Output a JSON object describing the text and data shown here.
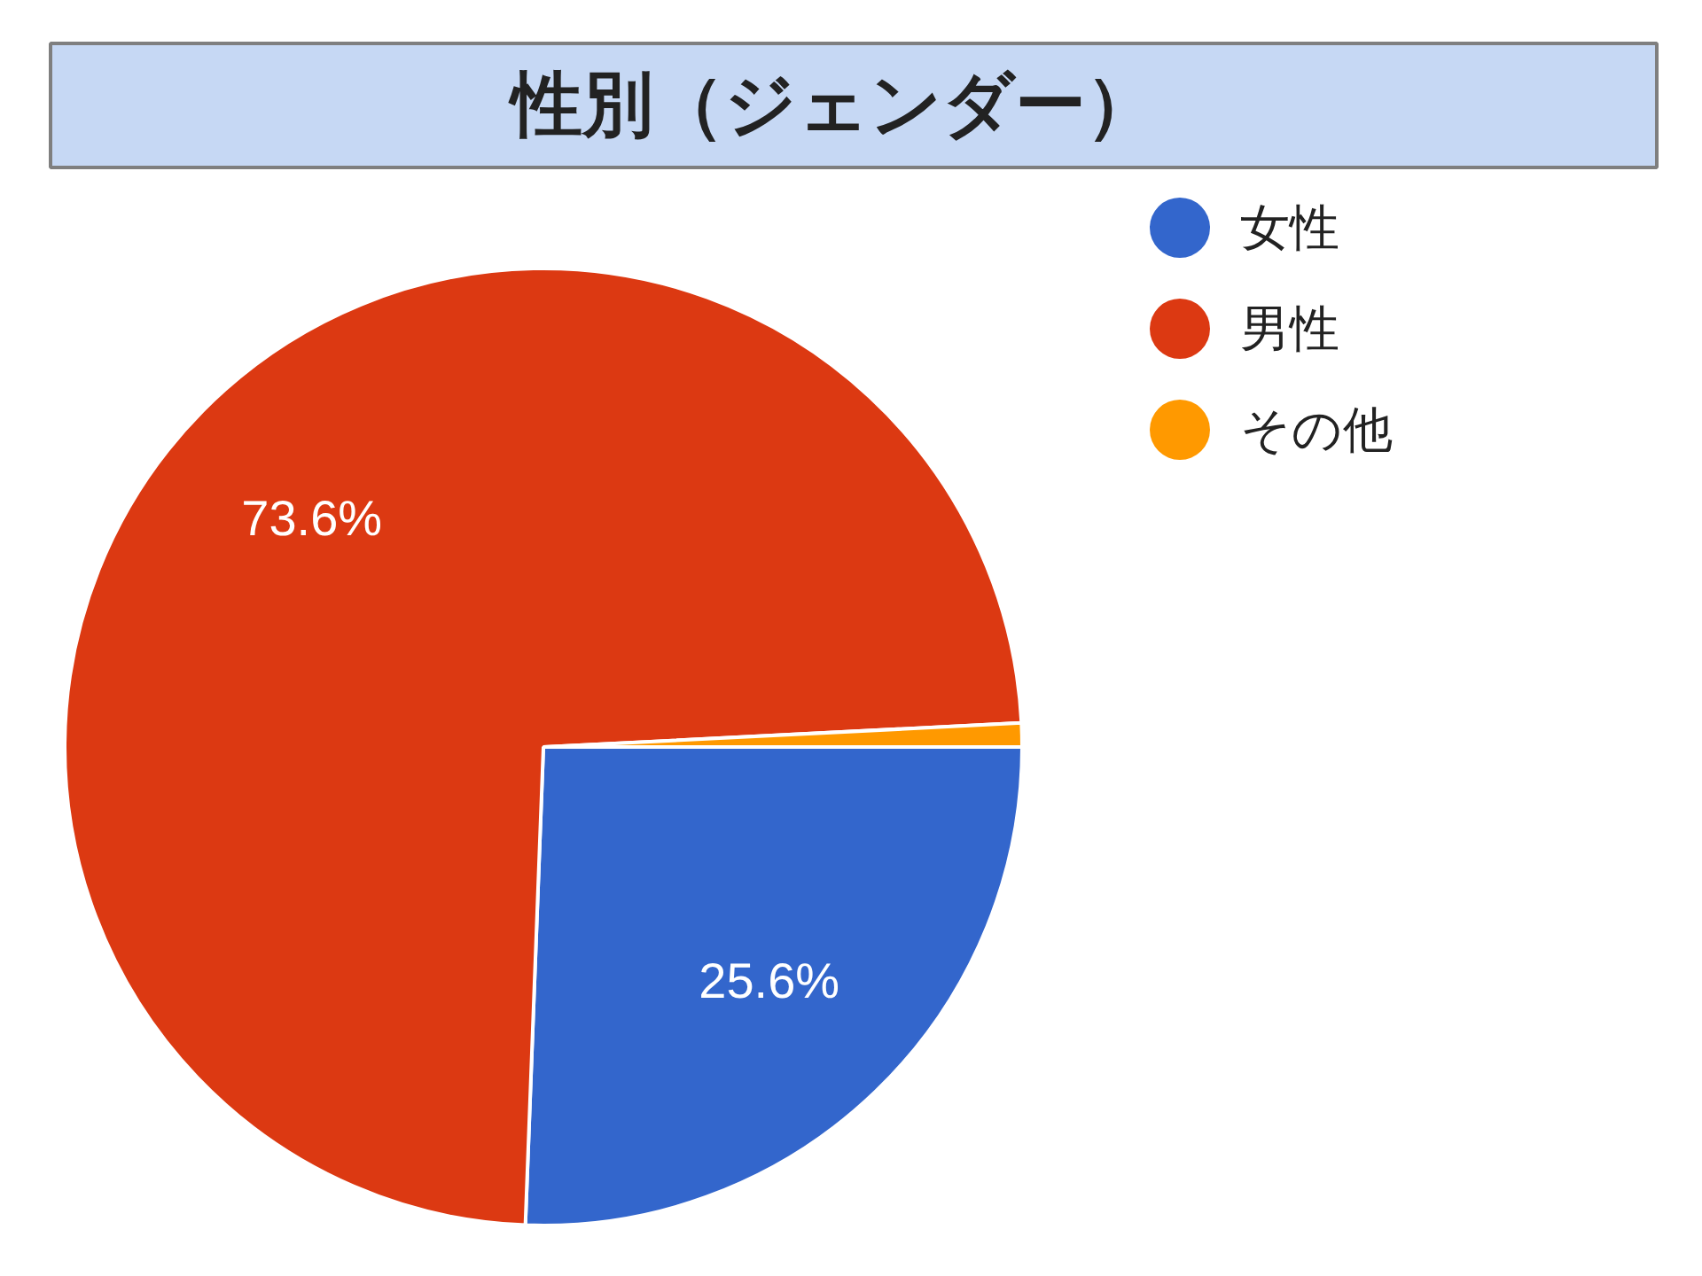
{
  "chart_data": {
    "type": "pie",
    "title": "性別（ジェンダー）",
    "categories": [
      "女性",
      "男性",
      "その他"
    ],
    "values": [
      25.6,
      73.6,
      0.8
    ],
    "colors": [
      "#3366cc",
      "#dc3912",
      "#ff9900"
    ],
    "value_labels": [
      "25.6%",
      "73.6%",
      null
    ],
    "legend": "top right"
  }
}
